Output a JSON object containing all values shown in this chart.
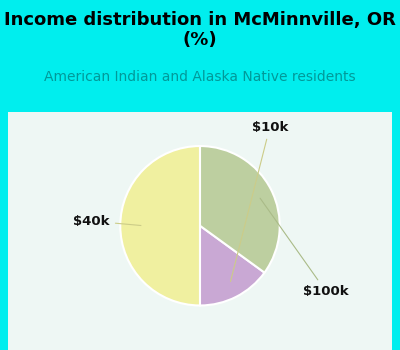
{
  "title": "Income distribution in McMinnville, OR\n(%)",
  "subtitle": "American Indian and Alaska Native residents",
  "slices": [
    {
      "label": "$40k",
      "value": 50,
      "color": "#F0F0A0"
    },
    {
      "label": "$10k",
      "value": 15,
      "color": "#C9A8D4"
    },
    {
      "label": "$100k",
      "value": 35,
      "color": "#BDCFA0"
    }
  ],
  "background_color": "#00EEEE",
  "chart_bg_color": "#E8F5F0",
  "title_color": "#000000",
  "subtitle_color": "#009999",
  "title_fontsize": 13,
  "subtitle_fontsize": 10,
  "label_fontsize": 9.5,
  "startangle": 90,
  "label_colors": [
    "#111111",
    "#111111",
    "#111111"
  ],
  "line_color": "#BBBB88"
}
